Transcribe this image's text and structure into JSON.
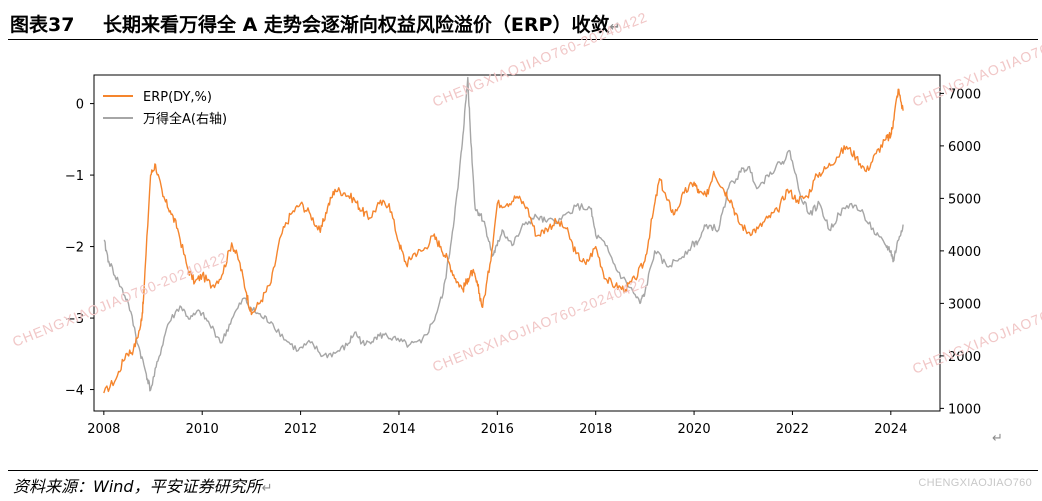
{
  "header": {
    "number": "图表37",
    "title": "长期来看万得全 A 走势会逐渐向权益风险溢价（ERP）收敛",
    "return_mark": "↵"
  },
  "footer": {
    "source": "资料来源：Wind，平安证券研究所",
    "return_mark": "↵",
    "watermark_text": "CHENGXIAOJIAO760"
  },
  "watermarks": [
    "CHENGXIAOJIAO760-20240422",
    "CHENGXIAOJIAO760-20240422",
    "CHENGXIAOJIAO760-20240422",
    "CHENGXIAOJIAO760-20240422",
    "CHENGXIAOJIAO760-20240422"
  ],
  "chart_data": {
    "type": "line",
    "x_ticks": [
      "2008",
      "2010",
      "2012",
      "2014",
      "2016",
      "2018",
      "2020",
      "2022",
      "2024"
    ],
    "xlim": [
      2007.8,
      2025.0
    ],
    "grid": false,
    "legend_position": "upper-left",
    "left_axis": {
      "ylim": [
        -4.3,
        0.4
      ],
      "ticks": [
        "0",
        "−1",
        "−2",
        "−3",
        "−4"
      ],
      "tick_values": [
        0,
        -1,
        -2,
        -3,
        -4
      ]
    },
    "right_axis": {
      "ylim": [
        950,
        7350
      ],
      "ticks": [
        "7000",
        "6000",
        "5000",
        "4000",
        "3000",
        "2000",
        "1000"
      ],
      "tick_values": [
        7000,
        6000,
        5000,
        4000,
        3000,
        2000,
        1000
      ]
    },
    "series": [
      {
        "name": "ERP(DY,%)",
        "axis": "left",
        "color": "#f5852d",
        "x": [
          2008.0,
          2008.25,
          2008.45,
          2008.6,
          2008.75,
          2008.8,
          2008.95,
          2009.05,
          2009.2,
          2009.35,
          2009.5,
          2009.7,
          2009.85,
          2010.0,
          2010.2,
          2010.4,
          2010.6,
          2010.75,
          2010.9,
          2011.0,
          2011.2,
          2011.4,
          2011.6,
          2011.8,
          2012.0,
          2012.2,
          2012.4,
          2012.55,
          2012.7,
          2012.9,
          2013.1,
          2013.25,
          2013.4,
          2013.6,
          2013.8,
          2014.0,
          2014.15,
          2014.3,
          2014.5,
          2014.7,
          2014.85,
          2015.0,
          2015.15,
          2015.3,
          2015.4,
          2015.5,
          2015.6,
          2015.7,
          2015.85,
          2016.0,
          2016.2,
          2016.4,
          2016.6,
          2016.8,
          2017.0,
          2017.2,
          2017.4,
          2017.6,
          2017.8,
          2018.0,
          2018.2,
          2018.4,
          2018.6,
          2018.8,
          2019.0,
          2019.15,
          2019.3,
          2019.45,
          2019.6,
          2019.8,
          2020.0,
          2020.1,
          2020.25,
          2020.4,
          2020.6,
          2020.75,
          2020.9,
          2021.1,
          2021.3,
          2021.5,
          2021.7,
          2021.9,
          2022.1,
          2022.3,
          2022.5,
          2022.7,
          2022.9,
          2023.1,
          2023.3,
          2023.5,
          2023.7,
          2023.9,
          2024.0,
          2024.05,
          2024.15,
          2024.25
        ],
        "y": [
          -4.05,
          -3.85,
          -3.5,
          -3.45,
          -3.1,
          -2.8,
          -1.0,
          -0.85,
          -1.3,
          -1.5,
          -1.75,
          -2.3,
          -2.5,
          -2.4,
          -2.55,
          -2.4,
          -1.95,
          -2.2,
          -2.65,
          -2.95,
          -2.75,
          -2.5,
          -1.85,
          -1.55,
          -1.4,
          -1.55,
          -1.8,
          -1.45,
          -1.2,
          -1.25,
          -1.35,
          -1.5,
          -1.6,
          -1.4,
          -1.4,
          -1.95,
          -2.25,
          -2.1,
          -2.05,
          -1.85,
          -2.0,
          -2.2,
          -2.45,
          -2.6,
          -2.45,
          -2.35,
          -2.55,
          -2.85,
          -2.25,
          -1.4,
          -1.4,
          -1.3,
          -1.45,
          -1.85,
          -1.75,
          -1.65,
          -1.75,
          -2.1,
          -2.25,
          -2.0,
          -2.45,
          -2.55,
          -2.6,
          -2.45,
          -2.2,
          -1.6,
          -1.05,
          -1.35,
          -1.55,
          -1.25,
          -1.1,
          -1.25,
          -1.3,
          -0.95,
          -1.2,
          -1.35,
          -1.65,
          -1.8,
          -1.75,
          -1.6,
          -1.5,
          -1.2,
          -1.35,
          -1.3,
          -1.0,
          -0.9,
          -0.75,
          -0.6,
          -0.75,
          -0.95,
          -0.7,
          -0.5,
          -0.45,
          -0.25,
          0.2,
          -0.1
        ]
      },
      {
        "name": "万得全A(右轴)",
        "axis": "right",
        "color": "#a6a6a6",
        "x": [
          2008.0,
          2008.1,
          2008.3,
          2008.5,
          2008.7,
          2008.85,
          2008.95,
          2009.1,
          2009.3,
          2009.55,
          2009.75,
          2009.95,
          2010.15,
          2010.4,
          2010.6,
          2010.85,
          2011.0,
          2011.2,
          2011.4,
          2011.7,
          2011.95,
          2012.2,
          2012.45,
          2012.7,
          2012.95,
          2013.1,
          2013.3,
          2013.5,
          2013.7,
          2013.95,
          2014.2,
          2014.45,
          2014.7,
          2014.9,
          2015.05,
          2015.2,
          2015.3,
          2015.4,
          2015.45,
          2015.55,
          2015.65,
          2015.75,
          2015.9,
          2016.0,
          2016.1,
          2016.3,
          2016.55,
          2016.8,
          2017.0,
          2017.3,
          2017.6,
          2017.9,
          2018.0,
          2018.2,
          2018.45,
          2018.7,
          2018.9,
          2019.0,
          2019.2,
          2019.45,
          2019.7,
          2019.95,
          2020.1,
          2020.25,
          2020.5,
          2020.7,
          2020.95,
          2021.1,
          2021.3,
          2021.55,
          2021.8,
          2021.95,
          2022.15,
          2022.35,
          2022.55,
          2022.75,
          2022.95,
          2023.2,
          2023.45,
          2023.7,
          2023.9,
          2024.0,
          2024.05,
          2024.15,
          2024.25
        ],
        "y": [
          4200,
          3800,
          3400,
          3000,
          2200,
          1700,
          1350,
          1900,
          2600,
          2950,
          2700,
          2850,
          2600,
          2250,
          2700,
          3100,
          2900,
          2750,
          2650,
          2300,
          2100,
          2250,
          2000,
          2050,
          2200,
          2450,
          2200,
          2350,
          2400,
          2300,
          2200,
          2250,
          2650,
          3200,
          4100,
          5200,
          6200,
          7300,
          6300,
          4800,
          4700,
          4500,
          3900,
          4100,
          4400,
          4100,
          4500,
          4650,
          4550,
          4600,
          4850,
          4800,
          4300,
          4100,
          3600,
          3300,
          3000,
          3200,
          4000,
          3700,
          3850,
          4100,
          4200,
          4500,
          4400,
          5200,
          5500,
          5600,
          5200,
          5500,
          5700,
          5900,
          5100,
          4700,
          4900,
          4400,
          4700,
          4900,
          4700,
          4300,
          4100,
          4000,
          3800,
          4200,
          4500
        ]
      }
    ]
  }
}
